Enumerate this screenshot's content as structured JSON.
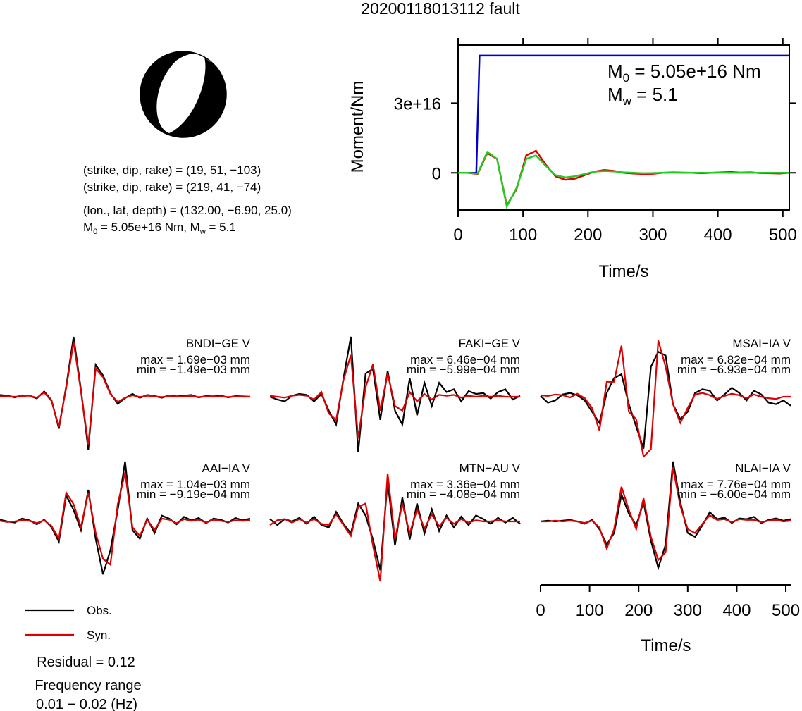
{
  "title": "20200118013112 fault",
  "mechanism": {
    "plane1": "(strike, dip, rake) = (19, 51, −103)",
    "plane2": "(strike, dip, rake) = (219, 41, −74)",
    "location": "(lon., lat, depth) = (132.00, −6.90, 25.0)",
    "m0_symbol": "M",
    "m0_sub": "0",
    "m0_text": " = 5.05e+16 Nm, ",
    "mw_symbol": "M",
    "mw_sub": "w",
    "mw_text": " = 5.1"
  },
  "legend": {
    "residual": "Residual = 0.12",
    "freq_title": "Frequency range",
    "freq_range": "0.01 − 0.02 (Hz)"
  },
  "chart_data": [
    {
      "type": "line",
      "xlabel": "Time/s",
      "ylabel": "Moment/Nm",
      "xlim": [
        0,
        510
      ],
      "xticks": [
        0,
        100,
        200,
        300,
        400,
        500
      ],
      "ylim": [
        -1.6e+16,
        5.5e+16
      ],
      "yticks": [
        0,
        {
          "value": 3e+16,
          "label": "3e+16"
        }
      ],
      "annotation": {
        "m0_symbol": "M",
        "m0_sub": "0",
        "m0_text": " = 5.05e+16 Nm",
        "mw_symbol": "M",
        "mw_sub": "w",
        "mw_text": " = 5.1"
      },
      "series": [
        {
          "color": "#0000cc",
          "x": [
            0,
            28,
            33,
            510
          ],
          "values": [
            0,
            0,
            5.05e+16,
            5.05e+16
          ]
        },
        {
          "color": "#dd0000",
          "x": [
            0,
            15,
            30,
            45,
            60,
            75,
            90,
            105,
            120,
            135,
            150,
            165,
            180,
            195,
            210,
            225,
            240,
            255,
            270,
            285,
            300,
            315,
            330,
            345,
            360,
            375,
            390,
            405,
            420,
            435,
            450,
            465,
            480,
            495,
            510
          ],
          "values": [
            0,
            0,
            -500000000000000.0,
            8500000000000000.0,
            6000000000000000.0,
            -1.4e+16,
            -7000000000000000.0,
            7500000000000000.0,
            9500000000000000.0,
            3500000000000000.0,
            -1500000000000000.0,
            -3000000000000000.0,
            -2500000000000000.0,
            -1000000000000000.0,
            500000000000000.0,
            1200000000000000.0,
            800000000000000.0,
            0,
            -300000000000000.0,
            -500000000000000.0,
            -400000000000000.0,
            0,
            200000000000000.0,
            100000000000000.0,
            0,
            -200000000000000.0,
            0,
            200000000000000.0,
            300000000000000.0,
            100000000000000.0,
            200000000000000.0,
            -100000000000000.0,
            -200000000000000.0,
            -300000000000000.0,
            0
          ]
        },
        {
          "color": "#22cc22",
          "x": [
            0,
            15,
            30,
            45,
            60,
            75,
            90,
            105,
            120,
            135,
            150,
            165,
            180,
            195,
            210,
            225,
            240,
            255,
            270,
            285,
            300,
            315,
            330,
            345,
            360,
            375,
            390,
            405,
            420,
            435,
            450,
            465,
            480,
            495,
            510
          ],
          "values": [
            0,
            0,
            -300000000000000.0,
            9000000000000000.0,
            6000000000000000.0,
            -1.45e+16,
            -6500000000000000.0,
            6000000000000000.0,
            7500000000000000.0,
            3000000000000000.0,
            -1000000000000000.0,
            -2000000000000000.0,
            -1500000000000000.0,
            -500000000000000.0,
            500000000000000.0,
            800000000000000.0,
            600000000000000.0,
            200000000000000.0,
            0,
            -200000000000000.0,
            -100000000000000.0,
            0,
            100000000000000.0,
            0,
            0,
            0,
            0,
            100000000000000.0,
            0,
            0,
            0,
            0,
            0,
            0,
            0
          ]
        }
      ]
    },
    {
      "type": "waveform",
      "xlabel": "Time/s",
      "xlim": [
        0,
        510
      ],
      "xticks": [
        0,
        100,
        200,
        300,
        400,
        500
      ],
      "legend": [
        {
          "name": "Obs.",
          "color": "#000000"
        },
        {
          "name": "Syn.",
          "color": "#dd0000"
        }
      ],
      "x": [
        0,
        15,
        30,
        45,
        60,
        75,
        90,
        105,
        120,
        135,
        150,
        165,
        180,
        195,
        210,
        225,
        240,
        255,
        270,
        285,
        300,
        315,
        330,
        345,
        360,
        375,
        390,
        405,
        420,
        435,
        450,
        465,
        480,
        495,
        510
      ],
      "panels": [
        {
          "station": "BNDI−GE V",
          "max_label": "max = 1.69e−03 mm",
          "min_label": "min = −1.49e−03 mm",
          "obs": [
            5e-05,
            3e-05,
            -2e-05,
            4e-05,
            3e-05,
            -5e-05,
            0.00015,
            -0.0001,
            -0.0009,
            0.0003,
            0.00169,
            0.0002,
            -0.00149,
            0.0009,
            0.0006,
            0.0001,
            -0.0002,
            -4e-05,
            8e-05,
            -3e-05,
            5e-05,
            2e-05,
            -3e-05,
            4e-05,
            1e-05,
            3e-05,
            5e-05,
            -2e-05,
            2e-05,
            1e-05,
            3e-05,
            -2e-05,
            2e-05,
            1e-05,
            0
          ],
          "syn": [
            1e-05,
            1e-05,
            0,
            2e-05,
            3e-05,
            -3e-05,
            0.00012,
            -0.00012,
            -0.00085,
            0.00025,
            0.00155,
            0.00015,
            -0.00135,
            0.0008,
            0.00055,
            8e-05,
            -0.00015,
            -3e-05,
            4e-05,
            -1e-05,
            3e-05,
            1e-05,
            -1e-05,
            2e-05,
            0,
            1e-05,
            2e-05,
            -1e-05,
            1e-05,
            0,
            1e-05,
            -1e-05,
            1e-05,
            0,
            0
          ]
        },
        {
          "station": "FAKI−GE V",
          "max_label": "max = 6.46e−04 mm",
          "min_label": "min = −5.99e−04 mm",
          "obs": [
            0,
            -3e-05,
            -5e-05,
            1e-05,
            3e-05,
            2e-05,
            -5e-05,
            3e-05,
            -0.00015,
            -0.0003,
            0.0002,
            0.000646,
            -0.000599,
            0.00025,
            0.0003,
            -0.00025,
            0.00028,
            -0.00015,
            -0.0003,
            0.0002,
            -0.0002,
            0.00015,
            -0.0001,
            0.00015,
            5e-05,
            8e-05,
            -5e-05,
            6e-05,
            3e-05,
            4e-05,
            -2e-05,
            5e-05,
            8e-05,
            -3e-05,
            1e-05
          ],
          "syn": [
            1e-05,
            0,
            -1e-05,
            1e-05,
            2e-05,
            1e-05,
            -3e-05,
            5e-05,
            -0.00018,
            -0.00025,
            0.00018,
            0.00045,
            -0.00045,
            0.0001,
            0.00035,
            -0.00015,
            0.00025,
            -0.0001,
            -0.00015,
            5e-05,
            -5e-05,
            3e-05,
            -3e-05,
            2e-05,
            1e-05,
            2e-05,
            -1e-05,
            1e-05,
            0,
            1e-05,
            0,
            1e-05,
            0,
            0,
            0
          ]
        },
        {
          "station": "MSAI−IA V",
          "max_label": "max = 6.82e−04 mm",
          "min_label": "min = −6.93e−04 mm",
          "obs": [
            1e-05,
            -8e-05,
            -5e-05,
            3e-05,
            5e-05,
            2e-05,
            -5e-05,
            -0.0002,
            -0.00035,
            5e-05,
            0.00025,
            0.0003,
            -0.0001,
            -0.0004,
            -0.000693,
            0.0004,
            0.0006,
            0.00055,
            -0.0001,
            -0.0003,
            -0.0002,
            5e-05,
            0.0001,
            8e-05,
            -5e-05,
            3e-05,
            0.00012,
            5e-05,
            -5e-05,
            8e-05,
            3e-05,
            -8e-05,
            -0.0001,
            -5e-05,
            -0.00012
          ],
          "syn": [
            2e-05,
            1e-05,
            3e-05,
            2e-05,
            -1e-05,
            4e-05,
            -2e-05,
            -0.00015,
            -0.00045,
            0.0002,
            0.0002,
            0.000682,
            -0.0002,
            -0.0003,
            -0.0008,
            -0.0007,
            0.00075,
            0.0004,
            -0.0001,
            -0.00035,
            -0.00015,
            3e-05,
            5e-05,
            2e-05,
            -3e-05,
            1e-05,
            4e-05,
            2e-05,
            -2e-05,
            3e-05,
            0,
            -2e-05,
            -3e-05,
            0,
            0
          ]
        },
        {
          "station": "AAI−IA V",
          "max_label": "max = 1.04e−03 mm",
          "min_label": "min = −9.19e−04 mm",
          "obs": [
            3e-05,
            0,
            -2e-05,
            5e-05,
            2e-05,
            -5e-05,
            3e-05,
            -0.0001,
            -0.00035,
            0.00045,
            0.0002,
            -0.00015,
            0.00055,
            -0.0003,
            -0.000919,
            -0.0005,
            0.0002,
            0.00104,
            -0.00015,
            -0.0003,
            5e-05,
            -0.0002,
            0.0001,
            5e-05,
            -5e-05,
            8e-05,
            2e-05,
            6e-05,
            -3e-05,
            5e-05,
            3e-05,
            -2e-05,
            6e-05,
            2e-05,
            5e-05
          ],
          "syn": [
            1e-05,
            -1e-05,
            0,
            2e-05,
            1e-05,
            -3e-05,
            2e-05,
            -8e-05,
            -0.0003,
            0.0005,
            0.0003,
            -0.0001,
            0.0005,
            -0.0002,
            -0.00065,
            -0.00075,
            0.0003,
            0.00085,
            -0.0001,
            -0.00025,
            3e-05,
            -0.00015,
            5e-05,
            3e-05,
            -3e-05,
            4e-05,
            1e-05,
            3e-05,
            -2e-05,
            3e-05,
            1e-05,
            -1e-05,
            2e-05,
            1e-05,
            2e-05
          ]
        },
        {
          "station": "MTN−AU V",
          "max_label": "max = 3.36e−04 mm",
          "min_label": "min = −4.08e−04 mm",
          "obs": [
            2e-05,
            -3e-05,
            2e-05,
            0,
            3e-05,
            -2e-05,
            4e-05,
            -3e-05,
            -5e-05,
            8e-05,
            -2e-05,
            -0.0001,
            0.00015,
            5e-05,
            -0.00015,
            -0.000408,
            0.000336,
            -0.0002,
            0.0002,
            -0.00015,
            0.00015,
            -0.0001,
            0.0001,
            -8e-05,
            5e-05,
            -5e-05,
            4e-05,
            -3e-05,
            5e-05,
            2e-05,
            -2e-05,
            3e-05,
            -1e-05,
            3e-05,
            -2e-05
          ],
          "syn": [
            -3e-05,
            1e-05,
            2e-05,
            -1e-05,
            2e-05,
            -1e-05,
            2e-05,
            -2e-05,
            -3e-05,
            6e-05,
            -3e-05,
            -0.00012,
            0.00012,
            0.00015,
            -0.0002,
            -0.0005,
            0.0004,
            -0.00015,
            0.00015,
            -0.0001,
            0.0001,
            -6e-05,
            6e-05,
            -4e-05,
            3e-05,
            -2e-05,
            2e-05,
            -1e-05,
            1e-05,
            0,
            0,
            1e-05,
            0,
            0,
            0
          ]
        },
        {
          "station": "NLAI−IA V",
          "max_label": "max = 7.76e−04 mm",
          "min_label": "min = −6.00e−04 mm",
          "obs": [
            0,
            1e-05,
            0,
            1e-05,
            2e-05,
            0,
            -3e-05,
            2e-05,
            -0.0001,
            -0.0003,
            -0.00015,
            0.00035,
            0.0001,
            -5e-05,
            0.00025,
            -0.00025,
            -0.0006,
            -0.0003,
            0.000776,
            0.00025,
            -0.00015,
            -0.0002,
            -5e-05,
            0.00012,
            3e-05,
            5e-05,
            -2e-05,
            4e-05,
            3e-05,
            6e-05,
            -2e-05,
            2e-05,
            4e-05,
            1e-05,
            3e-05
          ],
          "syn": [
            0,
            0,
            1e-05,
            0,
            1e-05,
            0,
            -2e-05,
            1e-05,
            -8e-05,
            -0.00035,
            -0.0001,
            0.00045,
            0.00015,
            -0.0001,
            0.0003,
            -0.0002,
            -0.0005,
            -0.0004,
            0.0007,
            0.0002,
            -0.0001,
            -0.00015,
            -3e-05,
            8e-05,
            2e-05,
            3e-05,
            -1e-05,
            3e-05,
            2e-05,
            2e-05,
            -1e-05,
            1e-05,
            2e-05,
            0,
            1e-05
          ]
        }
      ]
    }
  ]
}
